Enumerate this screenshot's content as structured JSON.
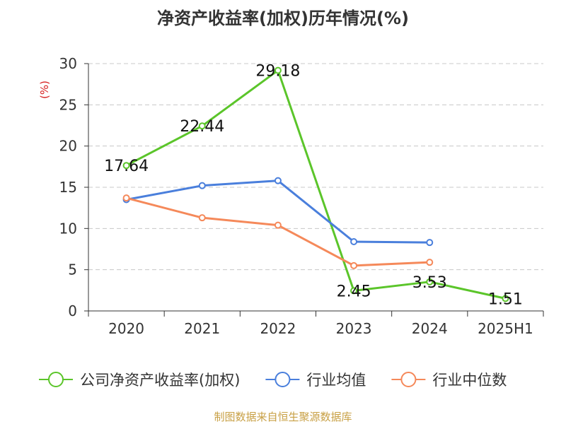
{
  "chart_data": {
    "type": "line",
    "title": "净资产收益率(加权)历年情况(%)",
    "ylabel": "(%)",
    "xlabel": "",
    "categories": [
      "2020",
      "2021",
      "2022",
      "2023",
      "2024",
      "2025H1"
    ],
    "ylim": [
      0,
      30
    ],
    "yticks": [
      0,
      5,
      10,
      15,
      20,
      25,
      30
    ],
    "grid": "horizontal-dashed",
    "legend_position": "bottom",
    "series": [
      {
        "name": "公司净资产收益率(加权)",
        "color": "#5bc52a",
        "values": [
          17.64,
          22.44,
          29.18,
          2.45,
          3.53,
          1.51
        ],
        "data_labels": [
          "17.64",
          "22.44",
          "29.18",
          "2.45",
          "3.53",
          "1.51"
        ]
      },
      {
        "name": "行业均值",
        "color": "#4a7fdc",
        "values": [
          13.5,
          15.2,
          15.8,
          8.4,
          8.3,
          null
        ]
      },
      {
        "name": "行业中位数",
        "color": "#f5895a",
        "values": [
          13.7,
          11.3,
          10.4,
          5.5,
          5.9,
          null
        ]
      }
    ],
    "source": "制图数据来自恒生聚源数据库"
  }
}
